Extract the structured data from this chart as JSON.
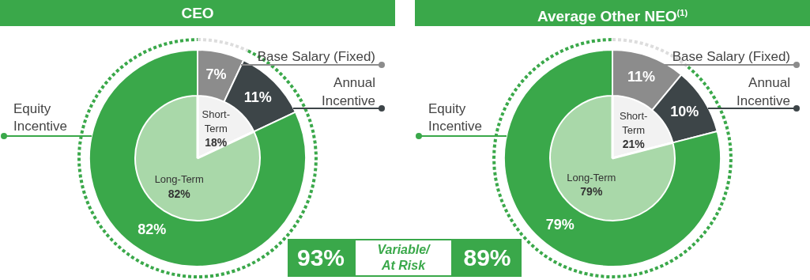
{
  "chart_data": [
    {
      "type": "donut",
      "title": "CEO",
      "categories": [
        "Base Salary (Fixed)",
        "Annual Incentive",
        "Equity Incentive"
      ],
      "values": [
        7,
        11,
        82
      ],
      "colors": [
        "#8c8c8c",
        "#3d4548",
        "#3aa84a"
      ],
      "value_labels": [
        "7%",
        "11%",
        "82%"
      ]
    },
    {
      "type": "pie",
      "categories": [
        "Short-Term",
        "Long-Term"
      ],
      "values": [
        18,
        82
      ],
      "colors": [
        "#f2f2f2",
        "#a9d8a9"
      ],
      "value_labels": [
        "18%",
        "82%"
      ]
    },
    {
      "type": "donut",
      "categories": [
        null,
        null
      ],
      "values": [
        7,
        93
      ],
      "colors": [
        "#dddddd",
        "#3aa84a"
      ],
      "line_style": "dotted",
      "annotations": [
        "93%",
        "Variable/ At Risk"
      ]
    },
    {
      "type": "donut",
      "title": "Average Other NEO$^{(1)}$",
      "categories": [
        "Base Salary (Fixed)",
        "Annual Incentive",
        "Equity Incentive"
      ],
      "values": [
        11,
        10,
        79
      ],
      "colors": [
        "#8c8c8c",
        "#3d4548",
        "#3aa84a"
      ],
      "value_labels": [
        "11%",
        "10%",
        "79%"
      ]
    },
    {
      "type": "pie",
      "categories": [
        "Short-Term",
        "Long-Term"
      ],
      "values": [
        21,
        79
      ],
      "colors": [
        "#f2f2f2",
        "#a9d8a9"
      ],
      "value_labels": [
        "21%",
        "79%"
      ]
    },
    {
      "type": "donut",
      "categories": [
        null,
        null
      ],
      "values": [
        11,
        89
      ],
      "colors": [
        "#dddddd",
        "#3aa84a"
      ],
      "line_style": "dotted",
      "annotations": [
        "89%"
      ]
    }
  ]
}
